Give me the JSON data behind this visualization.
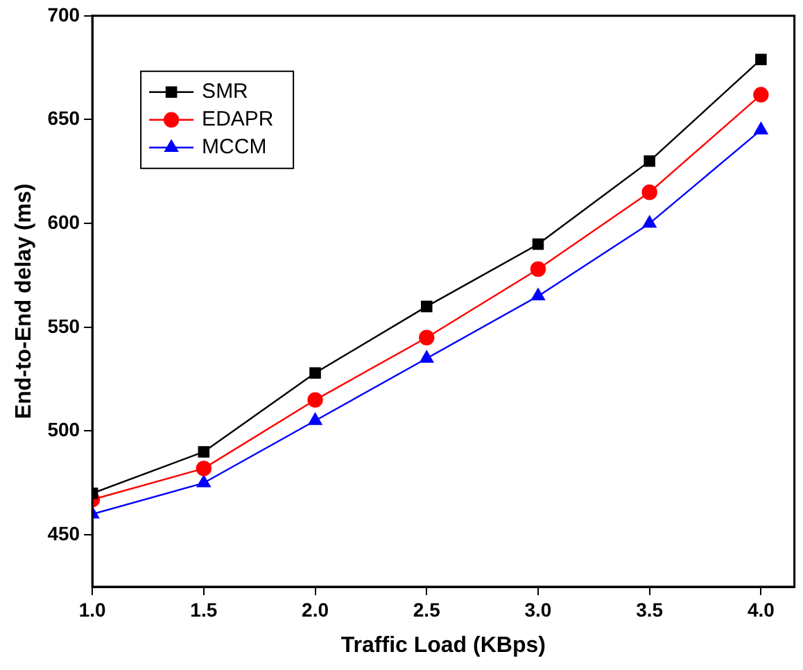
{
  "chart_data": {
    "type": "line",
    "xlabel": "Traffic Load (KBps)",
    "ylabel": "End-to-End delay (ms)",
    "x": [
      1.0,
      1.5,
      2.0,
      2.5,
      3.0,
      3.5,
      4.0
    ],
    "series": [
      {
        "name": "SMR",
        "color": "#000000",
        "marker": "square",
        "values": [
          470,
          490,
          528,
          560,
          590,
          630,
          679
        ]
      },
      {
        "name": "EDAPR",
        "color": "#ff0000",
        "marker": "circle",
        "values": [
          467,
          482,
          515,
          545,
          578,
          615,
          662
        ]
      },
      {
        "name": "MCCM",
        "color": "#0000ff",
        "marker": "triangle",
        "values": [
          460,
          475,
          505,
          535,
          565,
          600,
          645
        ]
      }
    ],
    "xlim": [
      1.0,
      4.15
    ],
    "xticks": [
      {
        "value": 1.0,
        "label": "1.0"
      },
      {
        "value": 1.5,
        "label": "1.5"
      },
      {
        "value": 2.0,
        "label": "2.0"
      },
      {
        "value": 2.5,
        "label": "2.5"
      },
      {
        "value": 3.0,
        "label": "3.0"
      },
      {
        "value": 3.5,
        "label": "3.5"
      },
      {
        "value": 4.0,
        "label": "4.0"
      }
    ],
    "ylim": [
      425,
      700
    ],
    "yticks": [
      450,
      500,
      550,
      600,
      650,
      700
    ],
    "grid": false,
    "legend": "top left",
    "line_style": "solid"
  }
}
